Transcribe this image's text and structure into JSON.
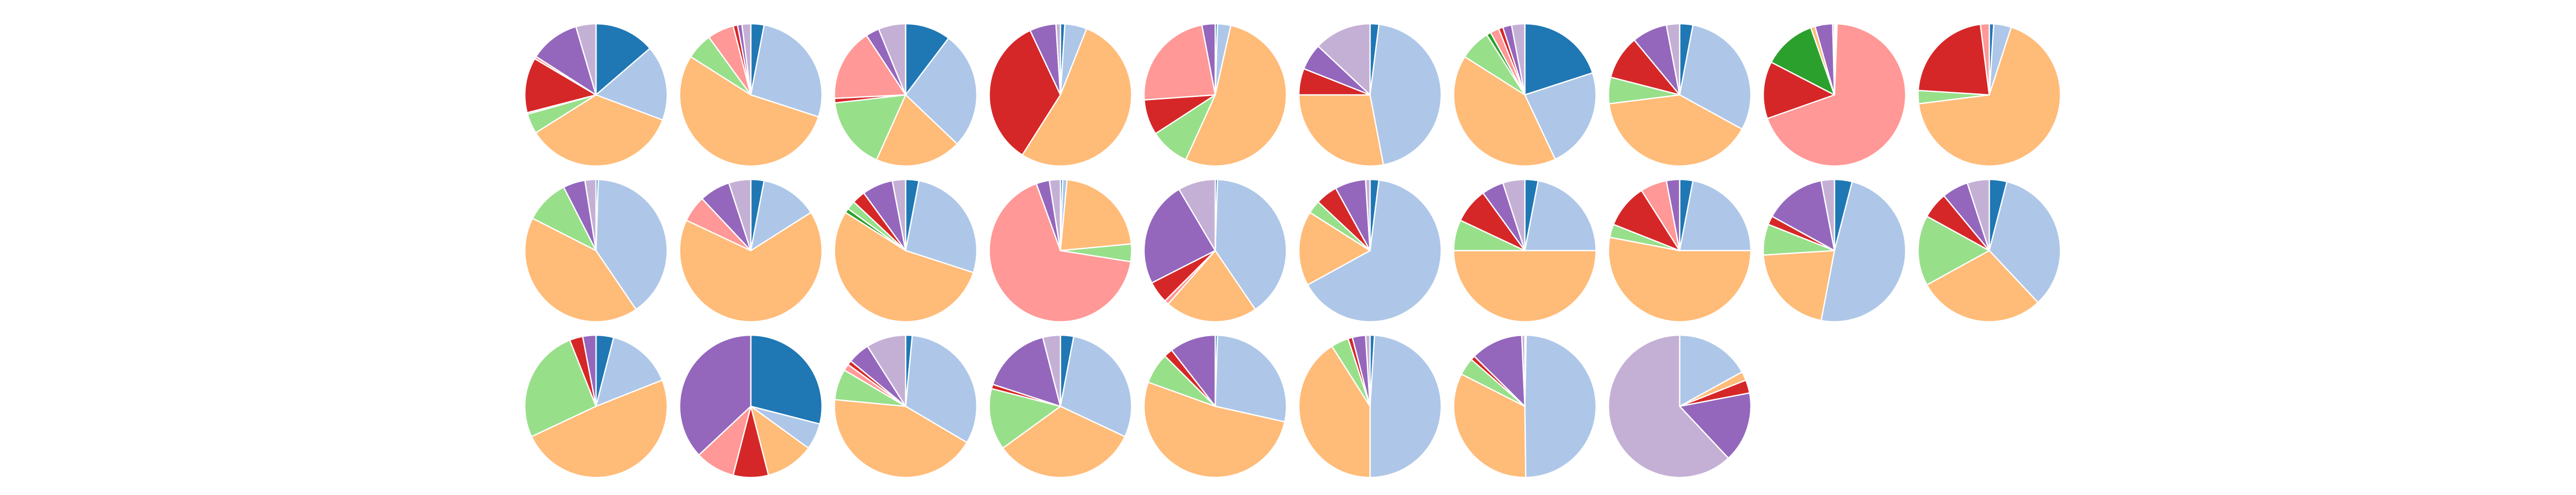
{
  "palette": {
    "dark_blue": "#1f77b4",
    "light_blue": "#aec7e8",
    "orange": "#ffbb78",
    "green": "#2ca02c",
    "light_green": "#98df8a",
    "red": "#d62728",
    "pink": "#ff9896",
    "purple": "#9467bd",
    "lavender": "#c5b0d5"
  },
  "chart_data": {
    "type": "pie",
    "start_angle": "12 o'clock",
    "direction": "clockwise",
    "grid": {
      "rows": 3,
      "columns": 10
    },
    "legend": "none",
    "pies": [
      {
        "slices": [
          [
            "dark_blue",
            12
          ],
          [
            "light_blue",
            15
          ],
          [
            "orange",
            31
          ],
          [
            "light_green",
            4
          ],
          [
            "green",
            0.3
          ],
          [
            "red",
            11
          ],
          [
            "pink",
            0.5
          ],
          [
            "purple",
            10
          ],
          [
            "lavender",
            4
          ]
        ]
      },
      {
        "slices": [
          [
            "dark_blue",
            3
          ],
          [
            "light_blue",
            27
          ],
          [
            "orange",
            54
          ],
          [
            "light_green",
            6
          ],
          [
            "pink",
            6
          ],
          [
            "red",
            1
          ],
          [
            "purple",
            1
          ],
          [
            "lavender",
            2
          ]
        ]
      },
      {
        "slices": [
          [
            "dark_blue",
            10
          ],
          [
            "light_blue",
            26
          ],
          [
            "orange",
            19
          ],
          [
            "light_green",
            16
          ],
          [
            "red",
            1
          ],
          [
            "pink",
            16
          ],
          [
            "purple",
            3
          ],
          [
            "lavender",
            6
          ]
        ]
      },
      {
        "slices": [
          [
            "dark_blue",
            1
          ],
          [
            "light_blue",
            5
          ],
          [
            "orange",
            53
          ],
          [
            "red",
            34
          ],
          [
            "purple",
            6
          ],
          [
            "lavender",
            1
          ]
        ]
      },
      {
        "slices": [
          [
            "dark_blue",
            0.5
          ],
          [
            "light_blue",
            3
          ],
          [
            "orange",
            53
          ],
          [
            "light_green",
            9
          ],
          [
            "red",
            8
          ],
          [
            "pink",
            23
          ],
          [
            "purple",
            3
          ]
        ]
      },
      {
        "slices": [
          [
            "dark_blue",
            2
          ],
          [
            "light_blue",
            45
          ],
          [
            "orange",
            28
          ],
          [
            "red",
            6
          ],
          [
            "purple",
            6
          ],
          [
            "lavender",
            13
          ]
        ]
      },
      {
        "slices": [
          [
            "dark_blue",
            20
          ],
          [
            "light_blue",
            23
          ],
          [
            "orange",
            41
          ],
          [
            "light_green",
            7
          ],
          [
            "green",
            1
          ],
          [
            "pink",
            2
          ],
          [
            "red",
            1
          ],
          [
            "purple",
            2
          ],
          [
            "lavender",
            3
          ]
        ]
      },
      {
        "slices": [
          [
            "dark_blue",
            3
          ],
          [
            "light_blue",
            30
          ],
          [
            "orange",
            40
          ],
          [
            "light_green",
            6
          ],
          [
            "red",
            10
          ],
          [
            "purple",
            8
          ],
          [
            "lavender",
            3
          ]
        ]
      },
      {
        "slices": [
          [
            "dark_blue",
            0.3
          ],
          [
            "light_blue",
            0.3
          ],
          [
            "pink",
            69
          ],
          [
            "red",
            13
          ],
          [
            "green",
            12
          ],
          [
            "orange",
            1
          ],
          [
            "purple",
            4
          ],
          [
            "lavender",
            0.4
          ]
        ]
      },
      {
        "slices": [
          [
            "dark_blue",
            1
          ],
          [
            "light_blue",
            4
          ],
          [
            "orange",
            68
          ],
          [
            "light_green",
            3
          ],
          [
            "red",
            22
          ],
          [
            "pink",
            2
          ]
        ]
      },
      {
        "slices": [
          [
            "dark_blue",
            0.5
          ],
          [
            "light_blue",
            40
          ],
          [
            "orange",
            42
          ],
          [
            "light_green",
            10
          ],
          [
            "purple",
            5
          ],
          [
            "lavender",
            2.5
          ]
        ]
      },
      {
        "slices": [
          [
            "dark_blue",
            3
          ],
          [
            "light_blue",
            13
          ],
          [
            "orange",
            66
          ],
          [
            "pink",
            6
          ],
          [
            "purple",
            7
          ],
          [
            "lavender",
            5
          ]
        ]
      },
      {
        "slices": [
          [
            "dark_blue",
            3
          ],
          [
            "light_blue",
            27
          ],
          [
            "orange",
            54
          ],
          [
            "green",
            1
          ],
          [
            "light_green",
            2
          ],
          [
            "red",
            3
          ],
          [
            "purple",
            7
          ],
          [
            "lavender",
            3
          ]
        ]
      },
      {
        "slices": [
          [
            "dark_blue",
            0.5
          ],
          [
            "light_blue",
            1
          ],
          [
            "orange",
            22
          ],
          [
            "light_green",
            4
          ],
          [
            "pink",
            67
          ],
          [
            "purple",
            3
          ],
          [
            "lavender",
            2.5
          ]
        ]
      },
      {
        "slices": [
          [
            "dark_blue",
            0.5
          ],
          [
            "light_blue",
            40
          ],
          [
            "orange",
            21
          ],
          [
            "pink",
            1
          ],
          [
            "red",
            5
          ],
          [
            "purple",
            24
          ],
          [
            "lavender",
            8.5
          ]
        ]
      },
      {
        "slices": [
          [
            "dark_blue",
            2
          ],
          [
            "light_blue",
            65
          ],
          [
            "orange",
            17
          ],
          [
            "light_green",
            3
          ],
          [
            "red",
            5
          ],
          [
            "purple",
            7
          ],
          [
            "lavender",
            1
          ]
        ]
      },
      {
        "slices": [
          [
            "dark_blue",
            3
          ],
          [
            "light_blue",
            22
          ],
          [
            "orange",
            50
          ],
          [
            "light_green",
            7
          ],
          [
            "red",
            8
          ],
          [
            "purple",
            5
          ],
          [
            "lavender",
            5
          ]
        ]
      },
      {
        "slices": [
          [
            "dark_blue",
            3
          ],
          [
            "light_blue",
            22
          ],
          [
            "orange",
            53
          ],
          [
            "light_green",
            3
          ],
          [
            "red",
            10
          ],
          [
            "pink",
            6
          ],
          [
            "purple",
            3
          ]
        ]
      },
      {
        "slices": [
          [
            "dark_blue",
            4
          ],
          [
            "light_blue",
            49
          ],
          [
            "orange",
            21
          ],
          [
            "light_green",
            7
          ],
          [
            "red",
            2
          ],
          [
            "purple",
            14
          ],
          [
            "lavender",
            3
          ]
        ]
      },
      {
        "slices": [
          [
            "dark_blue",
            4
          ],
          [
            "light_blue",
            34
          ],
          [
            "orange",
            29
          ],
          [
            "light_green",
            16
          ],
          [
            "red",
            6
          ],
          [
            "purple",
            6
          ],
          [
            "lavender",
            5
          ]
        ]
      },
      {
        "slices": [
          [
            "dark_blue",
            4
          ],
          [
            "light_blue",
            15
          ],
          [
            "orange",
            49
          ],
          [
            "light_green",
            26
          ],
          [
            "red",
            3
          ],
          [
            "purple",
            3
          ]
        ]
      },
      {
        "slices": [
          [
            "dark_blue",
            29
          ],
          [
            "light_blue",
            6
          ],
          [
            "orange",
            11
          ],
          [
            "red",
            8
          ],
          [
            "pink",
            9
          ],
          [
            "purple",
            37
          ]
        ]
      },
      {
        "slices": [
          [
            "dark_blue",
            1.5
          ],
          [
            "light_blue",
            32
          ],
          [
            "orange",
            43
          ],
          [
            "light_green",
            7
          ],
          [
            "pink",
            1.5
          ],
          [
            "red",
            1
          ],
          [
            "purple",
            5
          ],
          [
            "lavender",
            9
          ]
        ]
      },
      {
        "slices": [
          [
            "dark_blue",
            3
          ],
          [
            "light_blue",
            29
          ],
          [
            "orange",
            33
          ],
          [
            "light_green",
            14
          ],
          [
            "red",
            1
          ],
          [
            "purple",
            16
          ],
          [
            "lavender",
            4
          ]
        ]
      },
      {
        "slices": [
          [
            "dark_blue",
            0.5
          ],
          [
            "light_blue",
            28
          ],
          [
            "orange",
            52
          ],
          [
            "light_green",
            7
          ],
          [
            "red",
            2
          ],
          [
            "purple",
            10.5
          ]
        ]
      },
      {
        "slices": [
          [
            "dark_blue",
            1
          ],
          [
            "light_blue",
            49
          ],
          [
            "orange",
            41
          ],
          [
            "light_green",
            4
          ],
          [
            "red",
            1
          ],
          [
            "purple",
            3
          ],
          [
            "lavender",
            1
          ]
        ]
      },
      {
        "slices": [
          [
            "dark_blue",
            0.3
          ],
          [
            "light_blue",
            50
          ],
          [
            "orange",
            33
          ],
          [
            "light_green",
            4
          ],
          [
            "red",
            1
          ],
          [
            "purple",
            12
          ],
          [
            "lavender",
            0.7
          ]
        ]
      },
      {
        "slices": [
          [
            "light_blue",
            17
          ],
          [
            "orange",
            2
          ],
          [
            "red",
            3
          ],
          [
            "purple",
            16
          ],
          [
            "lavender",
            62
          ]
        ]
      }
    ]
  }
}
